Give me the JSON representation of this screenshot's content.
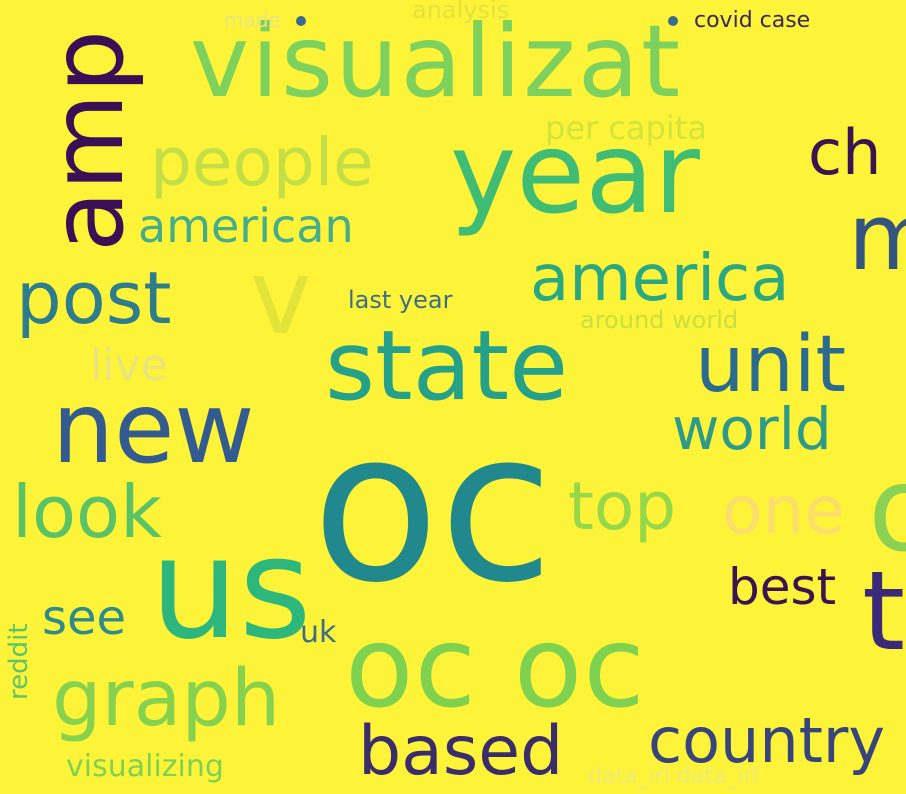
{
  "background_color": "#fdf43a",
  "words": [
    {
      "text": "visualizat",
      "color": "#7dd15c"
    },
    {
      "text": "year",
      "color": "#3fbd74"
    },
    {
      "text": "amp",
      "color": "#3b0f56"
    },
    {
      "text": "people",
      "color": "#c4df46"
    },
    {
      "text": "american",
      "color": "#46ad8a"
    },
    {
      "text": "per capita",
      "color": "#d3e43b"
    },
    {
      "text": "ch",
      "color": "#3a1451"
    },
    {
      "text": "m",
      "color": "#33557f"
    },
    {
      "text": "post",
      "color": "#2d7d8c"
    },
    {
      "text": "america",
      "color": "#2aa882"
    },
    {
      "text": "v",
      "color": "#e2e43a"
    },
    {
      "text": "last year",
      "color": "#3e6e86"
    },
    {
      "text": "around world",
      "color": "#c9e03d"
    },
    {
      "text": "live",
      "color": "#e9e57c"
    },
    {
      "text": "state",
      "color": "#25a18a"
    },
    {
      "text": "unit",
      "color": "#2d6b8e"
    },
    {
      "text": "new",
      "color": "#345b8f"
    },
    {
      "text": "world",
      "color": "#2e9a88"
    },
    {
      "text": "oc",
      "color": "#21888e"
    },
    {
      "text": "look",
      "color": "#5bc365"
    },
    {
      "text": "top",
      "color": "#96d848"
    },
    {
      "text": "one",
      "color": "#fbdf6a"
    },
    {
      "text": "o",
      "color": "#8ad154"
    },
    {
      "text": "us",
      "color": "#2eb77d"
    },
    {
      "text": "best",
      "color": "#3a1451"
    },
    {
      "text": "t",
      "color": "#3a2a78"
    },
    {
      "text": "see",
      "color": "#2f8a8c"
    },
    {
      "text": "uk",
      "color": "#3e6e86"
    },
    {
      "text": "reddit",
      "color": "#5ec467"
    },
    {
      "text": "oc oc",
      "color": "#7fd250"
    },
    {
      "text": "graph",
      "color": "#86d24e"
    },
    {
      "text": "based",
      "color": "#3b2d6b"
    },
    {
      "text": "country",
      "color": "#38457d"
    },
    {
      "text": "visualizing",
      "color": "#7fd250"
    },
    {
      "text": "data_irl data_irl",
      "color": "#eeea7a"
    },
    {
      "text": "analysis",
      "color": "#e2e43a"
    },
    {
      "text": "made",
      "color": "#e9e57c"
    },
    {
      "text": "covid case",
      "color": "#3a2a54"
    }
  ]
}
